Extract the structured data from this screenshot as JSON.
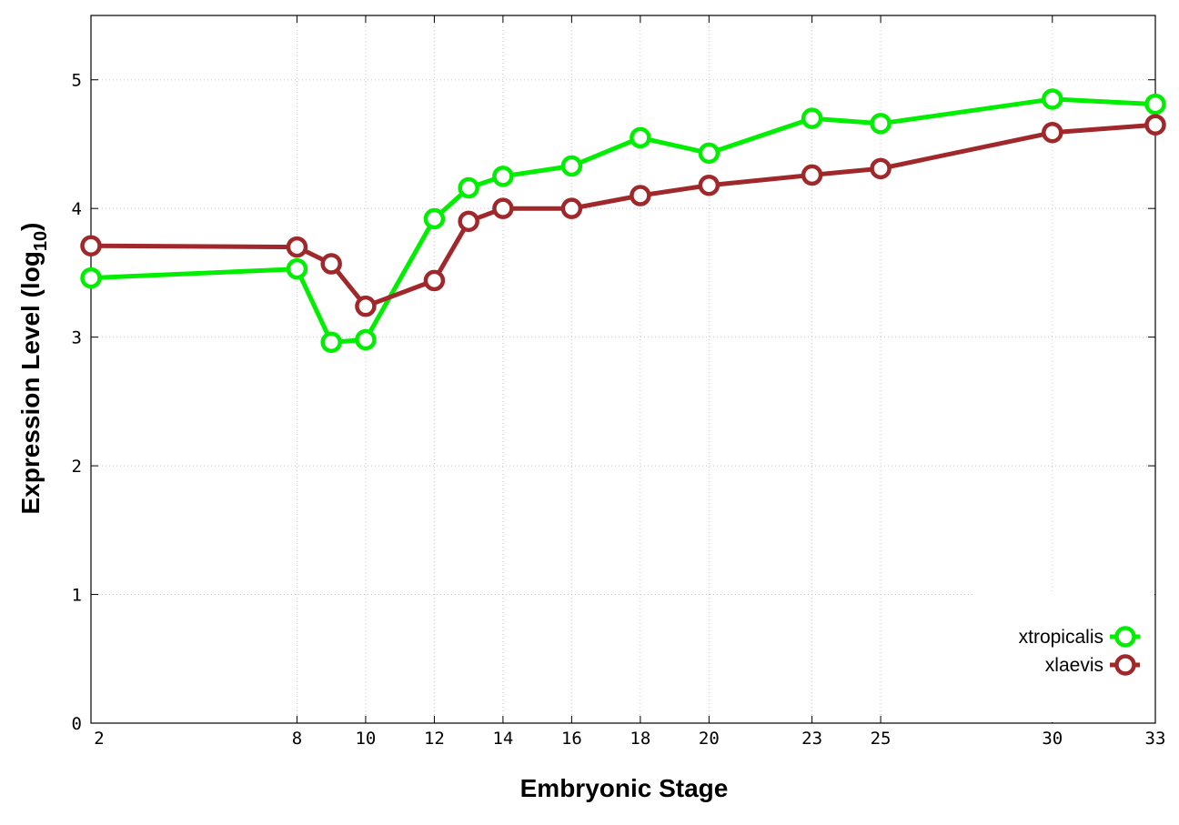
{
  "chart_data": {
    "type": "line",
    "title": "",
    "xlabel": "Embryonic Stage",
    "ylabel": {
      "prefix": "Expression Level (log",
      "subscript": "10",
      "suffix": ")"
    },
    "x": [
      2,
      8,
      9,
      10,
      12,
      13,
      14,
      16,
      18,
      20,
      23,
      25,
      30,
      33
    ],
    "x_ticks": [
      2,
      8,
      10,
      12,
      14,
      16,
      18,
      20,
      23,
      25,
      30,
      33
    ],
    "y_ticks": [
      0,
      1,
      2,
      3,
      4,
      5
    ],
    "xlim": [
      2,
      33
    ],
    "ylim": [
      0,
      5.5
    ],
    "grid": true,
    "legend_position": "bottom-right",
    "series": [
      {
        "name": "xtropicalis",
        "color": "#00ee00",
        "values": [
          3.46,
          3.53,
          2.96,
          2.98,
          3.92,
          4.16,
          4.25,
          4.33,
          4.55,
          4.43,
          4.7,
          4.66,
          4.85,
          4.81
        ]
      },
      {
        "name": "xlaevis",
        "color": "#a0282a",
        "values": [
          3.71,
          3.7,
          3.57,
          3.24,
          3.44,
          3.9,
          4.0,
          4.0,
          4.1,
          4.18,
          4.26,
          4.31,
          4.59,
          4.65
        ]
      }
    ]
  }
}
